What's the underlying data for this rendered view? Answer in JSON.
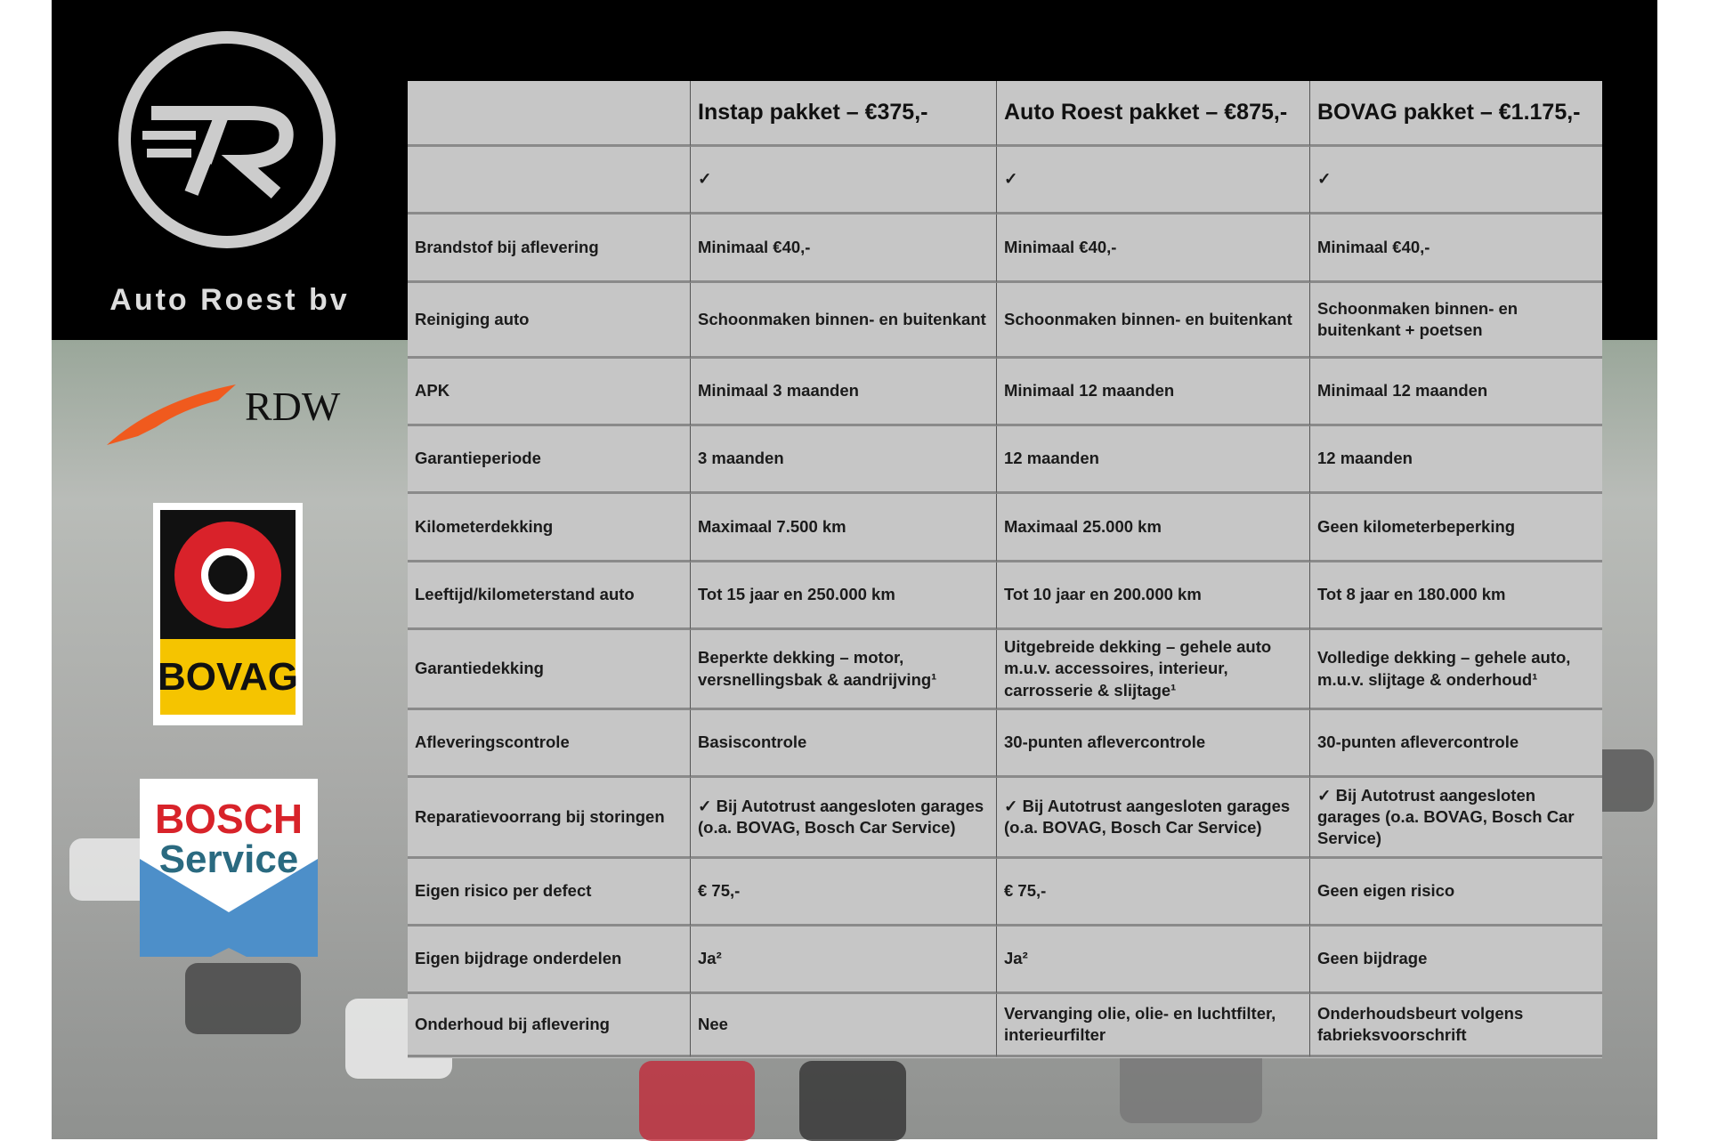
{
  "brand": {
    "name": "Auto Roest bv",
    "logo_letters": "7R"
  },
  "partner_logos": [
    {
      "name": "RDW",
      "text": "RDW"
    },
    {
      "name": "BOVAG",
      "text": "BOVAG"
    },
    {
      "name": "Bosch Service",
      "text1": "BOSCH",
      "text2": "Service"
    }
  ],
  "table": {
    "headers": [
      "",
      "Instap pakket – €375,-",
      "Auto Roest pakket – €875,-",
      "BOVAG pakket – €1.175,-"
    ],
    "rows": [
      [
        "",
        "✓",
        "✓",
        "✓"
      ],
      [
        "Brandstof bij aflevering",
        "Minimaal €40,-",
        "Minimaal €40,-",
        "Minimaal €40,-"
      ],
      [
        "Reiniging auto",
        "Schoonmaken binnen- en buitenkant",
        "Schoonmaken binnen- en buitenkant",
        "Schoonmaken binnen- en buitenkant + poetsen"
      ],
      [
        "APK",
        "Minimaal 3 maanden",
        "Minimaal 12 maanden",
        "Minimaal 12 maanden"
      ],
      [
        "Garantieperiode",
        "3 maanden",
        "12 maanden",
        "12 maanden"
      ],
      [
        "Kilometerdekking",
        "Maximaal 7.500 km",
        "Maximaal 25.000 km",
        "Geen kilometerbeperking"
      ],
      [
        "Leeftijd/kilometerstand auto",
        "Tot 15 jaar en 250.000 km",
        "Tot 10 jaar en 200.000 km",
        "Tot 8 jaar en 180.000 km"
      ],
      [
        "Garantiedekking",
        "Beperkte dekking – motor, versnellingsbak & aandrijving¹",
        "Uitgebreide dekking – gehele auto m.u.v. accessoires, interieur, carrosserie & slijtage¹",
        "Volledige dekking – gehele auto, m.u.v. slijtage & onderhoud¹"
      ],
      [
        "Afleveringscontrole",
        "Basiscontrole",
        "30-punten aflevercontrole",
        "30-punten aflevercontrole"
      ],
      [
        "Reparatievoorrang bij storingen",
        "✓ Bij Autotrust aangesloten garages (o.a. BOVAG, Bosch Car Service)",
        "✓ Bij Autotrust aangesloten garages (o.a. BOVAG, Bosch Car Service)",
        "✓ Bij Autotrust aangesloten garages (o.a. BOVAG, Bosch Car Service)"
      ],
      [
        "Eigen risico per defect",
        "€ 75,-",
        "€ 75,-",
        "Geen eigen risico"
      ],
      [
        "Eigen bijdrage onderdelen",
        "Ja²",
        "Ja²",
        "Geen bijdrage"
      ],
      [
        "Onderhoud bij aflevering",
        "Nee",
        "Vervanging olie, olie- en luchtfilter, interieurfilter",
        "Onderhoudsbeurt volgens fabrieksvoorschrift"
      ]
    ]
  },
  "colors": {
    "rdw_orange": "#f05a1e",
    "bovag_yellow": "#f5c400",
    "bovag_red": "#d9222a",
    "bosch_red": "#d8232a",
    "bosch_blue": "#4d8fc9"
  }
}
